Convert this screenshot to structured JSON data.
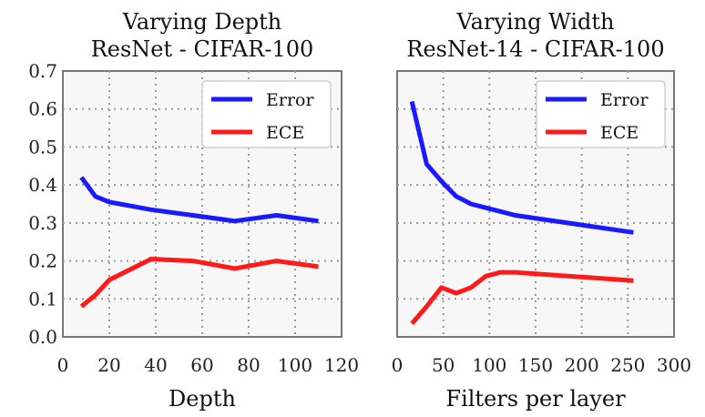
{
  "chart_data": [
    {
      "type": "line",
      "title": "Varying Depth",
      "subtitle": "ResNet - CIFAR-100",
      "xlabel": "Depth",
      "ylabel": "",
      "xlim": [
        0,
        120
      ],
      "ylim": [
        0.0,
        0.7
      ],
      "xticks": [
        "0",
        "20",
        "40",
        "60",
        "80",
        "100",
        "120"
      ],
      "yticks": [
        "0.0",
        "0.1",
        "0.2",
        "0.3",
        "0.4",
        "0.5",
        "0.6",
        "0.7"
      ],
      "grid": true,
      "legend_position": "top-right",
      "series": [
        {
          "name": "Error",
          "color": "#1a1aff",
          "x": [
            8,
            14,
            20,
            38,
            56,
            74,
            92,
            110
          ],
          "y": [
            0.42,
            0.37,
            0.355,
            0.335,
            0.32,
            0.305,
            0.32,
            0.305
          ]
        },
        {
          "name": "ECE",
          "color": "#ff1a1a",
          "x": [
            8,
            14,
            20,
            38,
            56,
            74,
            92,
            110
          ],
          "y": [
            0.08,
            0.11,
            0.15,
            0.205,
            0.2,
            0.18,
            0.2,
            0.185
          ]
        }
      ]
    },
    {
      "type": "line",
      "title": "Varying Width",
      "subtitle": "ResNet-14 - CIFAR-100",
      "xlabel": "Filters per layer",
      "ylabel": "",
      "xlim": [
        0,
        300
      ],
      "ylim": [
        0.0,
        0.7
      ],
      "xticks": [
        "0",
        "50",
        "100",
        "150",
        "200",
        "250",
        "300"
      ],
      "yticks": [],
      "grid": true,
      "legend_position": "top-right",
      "series": [
        {
          "name": "Error",
          "color": "#1a1aff",
          "x": [
            16,
            32,
            48,
            64,
            80,
            96,
            112,
            128,
            256
          ],
          "y": [
            0.62,
            0.455,
            0.41,
            0.37,
            0.35,
            0.34,
            0.33,
            0.32,
            0.275
          ]
        },
        {
          "name": "ECE",
          "color": "#ff1a1a",
          "x": [
            16,
            32,
            48,
            64,
            80,
            96,
            112,
            128,
            256
          ],
          "y": [
            0.035,
            0.08,
            0.13,
            0.115,
            0.13,
            0.16,
            0.17,
            0.17,
            0.148
          ]
        }
      ]
    }
  ]
}
